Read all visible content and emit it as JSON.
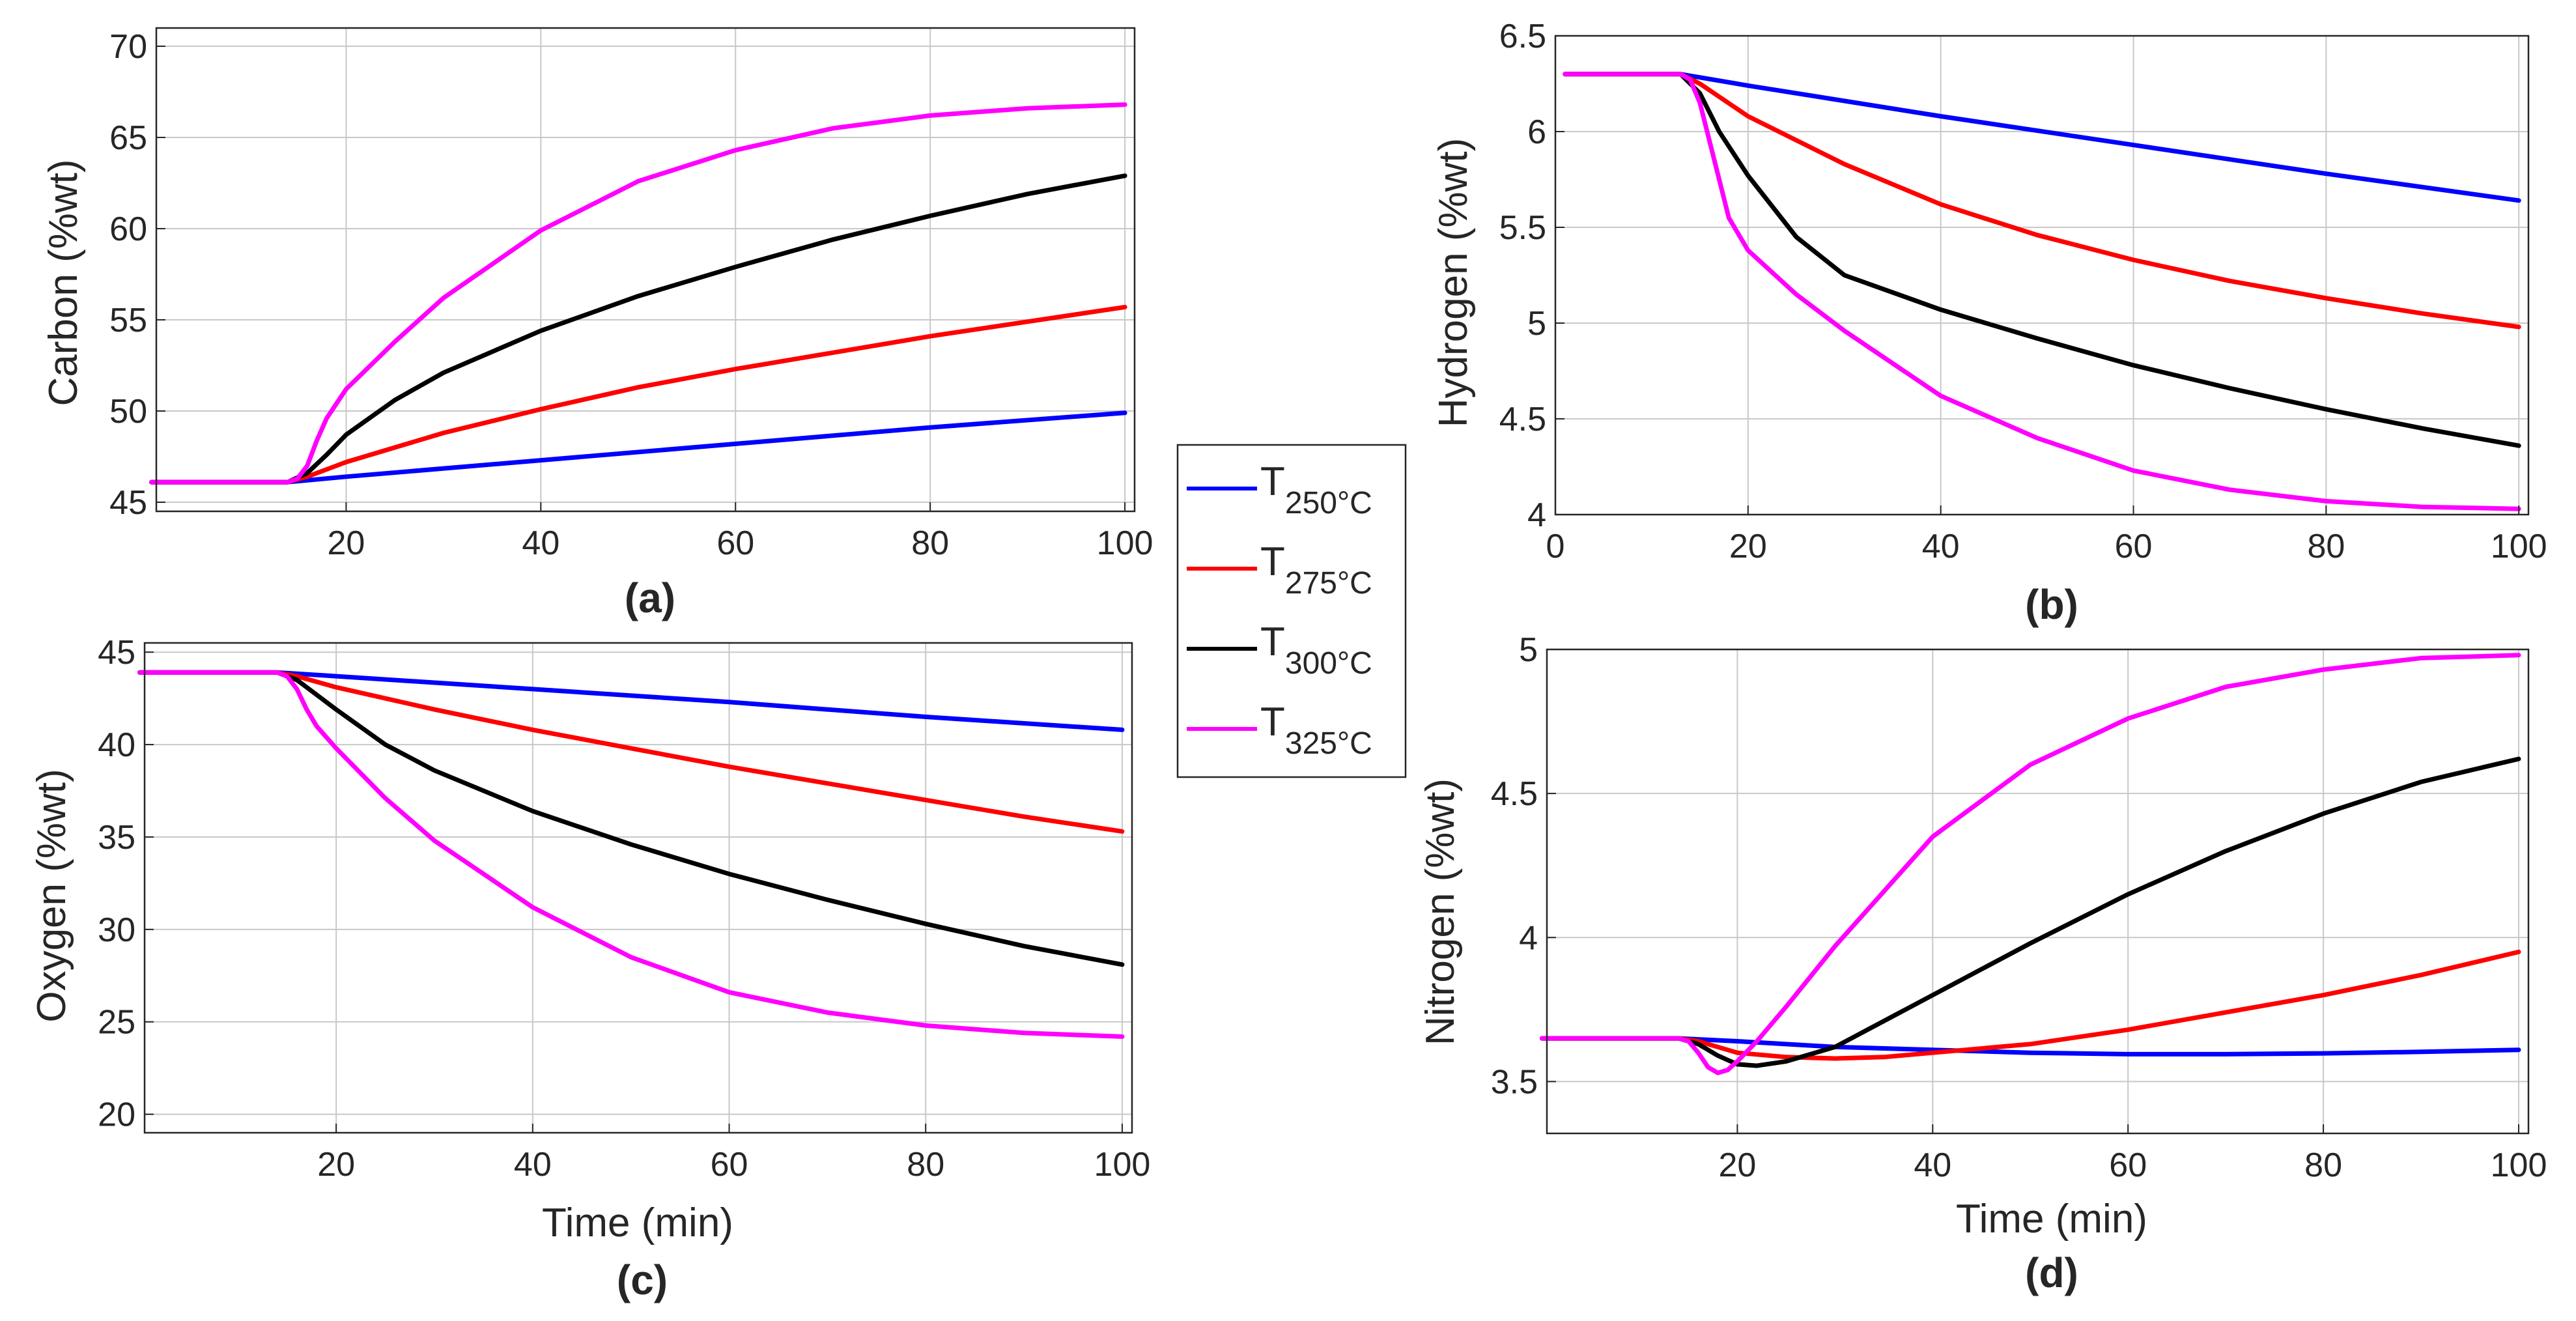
{
  "chart_data": [
    {
      "type": "line",
      "panel": "(a)",
      "xlabel": "",
      "ylabel": "Carbon (%wt)",
      "xlim": [
        0.5,
        101
      ],
      "ylim": [
        44.5,
        71
      ],
      "xticks": [
        20,
        40,
        60,
        80,
        100
      ],
      "yticks": [
        45,
        50,
        55,
        60,
        65,
        70
      ],
      "grid": true,
      "series": [
        {
          "name": "T250°C",
          "color": "#0000ff",
          "x": [
            0,
            14,
            20,
            40,
            60,
            80,
            100
          ],
          "y": [
            46.1,
            46.1,
            46.4,
            47.3,
            48.2,
            49.1,
            49.9
          ]
        },
        {
          "name": "T275°C",
          "color": "#ff0000",
          "x": [
            0,
            14,
            16,
            20,
            30,
            40,
            50,
            60,
            70,
            80,
            90,
            100
          ],
          "y": [
            46.1,
            46.1,
            46.4,
            47.2,
            48.8,
            50.1,
            51.3,
            52.3,
            53.2,
            54.1,
            54.9,
            55.7
          ]
        },
        {
          "name": "T300°C",
          "color": "#000000",
          "x": [
            0,
            14,
            16,
            18,
            20,
            25,
            30,
            40,
            50,
            60,
            70,
            80,
            90,
            100
          ],
          "y": [
            46.1,
            46.1,
            46.6,
            47.6,
            48.7,
            50.6,
            52.1,
            54.4,
            56.3,
            57.9,
            59.4,
            60.7,
            61.9,
            62.9
          ]
        },
        {
          "name": "T325°C",
          "color": "#ff00ff",
          "x": [
            0,
            14,
            15,
            16,
            17,
            18,
            20,
            25,
            30,
            40,
            50,
            60,
            70,
            80,
            90,
            100
          ],
          "y": [
            46.1,
            46.1,
            46.3,
            47.0,
            48.4,
            49.6,
            51.2,
            53.8,
            56.2,
            59.9,
            62.6,
            64.3,
            65.5,
            66.2,
            66.6,
            66.8
          ]
        }
      ]
    },
    {
      "type": "line",
      "panel": "(b)",
      "xlabel": "",
      "ylabel": "Hydrogen (%wt)",
      "xlim": [
        0,
        101
      ],
      "ylim": [
        4,
        6.5
      ],
      "xticks": [
        0,
        20,
        40,
        60,
        80,
        100
      ],
      "yticks": [
        4,
        4.5,
        5,
        5.5,
        6,
        6.5
      ],
      "ytick_labels": [
        "4",
        "4.5",
        "5",
        "5.5",
        "6",
        "6.5"
      ],
      "grid": true,
      "series": [
        {
          "name": "T250°C",
          "color": "#0000ff",
          "x": [
            1,
            13,
            20,
            40,
            60,
            80,
            100
          ],
          "y": [
            6.3,
            6.3,
            6.24,
            6.08,
            5.93,
            5.78,
            5.64
          ]
        },
        {
          "name": "T275°C",
          "color": "#ff0000",
          "x": [
            1,
            13,
            15,
            20,
            30,
            40,
            50,
            60,
            70,
            80,
            90,
            100
          ],
          "y": [
            6.3,
            6.3,
            6.25,
            6.08,
            5.83,
            5.62,
            5.46,
            5.33,
            5.22,
            5.13,
            5.05,
            4.98
          ]
        },
        {
          "name": "T300°C",
          "color": "#000000",
          "x": [
            1,
            13,
            15,
            17,
            20,
            25,
            30,
            40,
            50,
            60,
            70,
            80,
            90,
            100
          ],
          "y": [
            6.3,
            6.3,
            6.2,
            6.0,
            5.77,
            5.45,
            5.25,
            5.07,
            4.92,
            4.78,
            4.66,
            4.55,
            4.45,
            4.36
          ]
        },
        {
          "name": "T325°C",
          "color": "#ff00ff",
          "x": [
            1,
            13,
            14,
            15,
            16,
            17,
            18,
            20,
            25,
            30,
            40,
            50,
            60,
            70,
            80,
            90,
            100
          ],
          "y": [
            6.3,
            6.3,
            6.27,
            6.15,
            5.95,
            5.75,
            5.55,
            5.38,
            5.15,
            4.96,
            4.62,
            4.4,
            4.23,
            4.13,
            4.07,
            4.04,
            4.03
          ]
        }
      ]
    },
    {
      "type": "line",
      "panel": "(c)",
      "xlabel": "Time (min)",
      "ylabel": "Oxygen (%wt)",
      "xlim": [
        0.5,
        101
      ],
      "ylim": [
        19,
        45.5
      ],
      "xticks": [
        20,
        40,
        60,
        80,
        100
      ],
      "yticks": [
        20,
        25,
        30,
        35,
        40,
        45
      ],
      "grid": true,
      "series": [
        {
          "name": "T250°C",
          "color": "#0000ff",
          "x": [
            0,
            14,
            20,
            40,
            60,
            80,
            100
          ],
          "y": [
            43.9,
            43.9,
            43.7,
            43.0,
            42.3,
            41.5,
            40.8
          ]
        },
        {
          "name": "T275°C",
          "color": "#ff0000",
          "x": [
            0,
            14,
            16,
            20,
            30,
            40,
            50,
            60,
            70,
            80,
            90,
            100
          ],
          "y": [
            43.9,
            43.9,
            43.7,
            43.1,
            41.9,
            40.8,
            39.8,
            38.8,
            37.9,
            37.0,
            36.1,
            35.3
          ]
        },
        {
          "name": "T300°C",
          "color": "#000000",
          "x": [
            0,
            14,
            16,
            18,
            20,
            25,
            30,
            40,
            50,
            60,
            70,
            80,
            90,
            100
          ],
          "y": [
            43.9,
            43.9,
            43.5,
            42.7,
            41.9,
            40.0,
            38.6,
            36.4,
            34.6,
            33.0,
            31.6,
            30.3,
            29.1,
            28.1
          ]
        },
        {
          "name": "T325°C",
          "color": "#ff00ff",
          "x": [
            0,
            14,
            15,
            16,
            17,
            18,
            20,
            25,
            30,
            40,
            50,
            60,
            70,
            80,
            90,
            100
          ],
          "y": [
            43.9,
            43.9,
            43.7,
            43.0,
            41.9,
            41.0,
            39.8,
            37.1,
            34.8,
            31.2,
            28.5,
            26.6,
            25.5,
            24.8,
            24.4,
            24.2
          ]
        }
      ]
    },
    {
      "type": "line",
      "panel": "(d)",
      "xlabel": "Time (min)",
      "ylabel": "Nitrogen (%wt)",
      "xlim": [
        0.5,
        101
      ],
      "ylim": [
        3.32,
        5.0
      ],
      "xticks": [
        20,
        40,
        60,
        80,
        100
      ],
      "yticks": [
        3.5,
        4,
        4.5,
        5
      ],
      "ytick_labels": [
        "3.5",
        "4",
        "4.5",
        "5"
      ],
      "grid": true,
      "series": [
        {
          "name": "T250°C",
          "color": "#0000ff",
          "x": [
            0,
            14,
            20,
            30,
            40,
            50,
            60,
            70,
            80,
            90,
            100
          ],
          "y": [
            3.65,
            3.65,
            3.64,
            3.62,
            3.61,
            3.6,
            3.595,
            3.595,
            3.598,
            3.603,
            3.61
          ]
        },
        {
          "name": "T275°C",
          "color": "#ff0000",
          "x": [
            0,
            14,
            16,
            18,
            20,
            25,
            30,
            35,
            40,
            50,
            60,
            70,
            80,
            90,
            100
          ],
          "y": [
            3.65,
            3.65,
            3.64,
            3.62,
            3.6,
            3.585,
            3.58,
            3.585,
            3.6,
            3.63,
            3.68,
            3.74,
            3.8,
            3.87,
            3.95
          ]
        },
        {
          "name": "T300°C",
          "color": "#000000",
          "x": [
            0,
            14,
            16,
            18,
            20,
            22,
            25,
            30,
            40,
            50,
            60,
            70,
            80,
            90,
            100
          ],
          "y": [
            3.65,
            3.65,
            3.63,
            3.59,
            3.56,
            3.555,
            3.57,
            3.62,
            3.8,
            3.98,
            4.15,
            4.3,
            4.43,
            4.54,
            4.62
          ]
        },
        {
          "name": "T325°C",
          "color": "#ff00ff",
          "x": [
            0,
            14,
            15,
            16,
            17,
            18,
            19,
            20,
            22,
            25,
            30,
            40,
            50,
            60,
            70,
            80,
            90,
            100
          ],
          "y": [
            3.65,
            3.65,
            3.64,
            3.6,
            3.55,
            3.53,
            3.54,
            3.57,
            3.64,
            3.76,
            3.97,
            4.35,
            4.6,
            4.76,
            4.87,
            4.93,
            4.97,
            4.98
          ]
        }
      ]
    }
  ],
  "legend": {
    "placement": "center",
    "entries": [
      {
        "main": "T",
        "sub": "250°C",
        "color": "#0000ff"
      },
      {
        "main": "T",
        "sub": "275°C",
        "color": "#ff0000"
      },
      {
        "main": "T",
        "sub": "300°C",
        "color": "#000000"
      },
      {
        "main": "T",
        "sub": "325°C",
        "color": "#ff00ff"
      }
    ]
  }
}
